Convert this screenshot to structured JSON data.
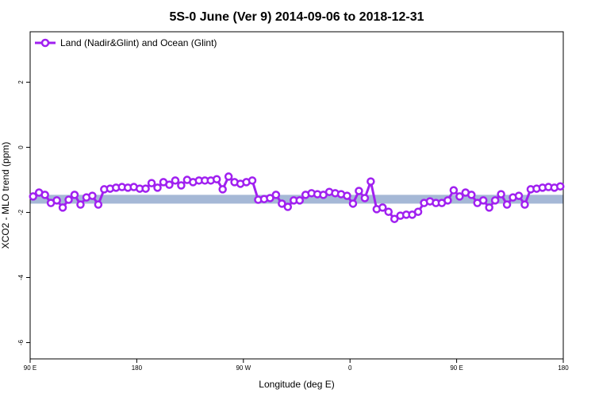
{
  "chart_data": {
    "type": "line",
    "title": "5S-0 June (Ver 9)   2014-09-06 to 2018-12-31",
    "x_label": "Longitude (deg E)",
    "y_label": "XCO2 - MLO trend (ppm)",
    "xlim": [
      90,
      540
    ],
    "ylim": [
      -6.5,
      3.55
    ],
    "xticks": [
      {
        "value": 90,
        "label": "90 E"
      },
      180,
      {
        "value": 270,
        "label": "90 W"
      },
      {
        "value": 360,
        "label": "0"
      },
      {
        "value": 450,
        "label": "90 E"
      },
      {
        "value": 540,
        "label": "180"
      }
    ],
    "yticks": [
      -6,
      -4,
      -2,
      0,
      2
    ],
    "reference_band": [
      -1.73,
      -1.46
    ],
    "band_color": "#a5b8d6",
    "legend_position": "top-left",
    "x": [
      92.5,
      97.5,
      102.5,
      107.5,
      112.5,
      117.5,
      122.5,
      127.5,
      132.5,
      137.5,
      142.5,
      147.5,
      152.5,
      157.5,
      162.5,
      167.5,
      172.5,
      177.5,
      182.5,
      187.5,
      192.5,
      197.5,
      202.5,
      207.5,
      212.5,
      217.5,
      222.5,
      227.5,
      232.5,
      237.5,
      242.5,
      247.5,
      252.5,
      257.5,
      262.5,
      267.5,
      272.5,
      277.5,
      282.5,
      287.5,
      292.5,
      297.5,
      302.5,
      307.5,
      312.5,
      317.5,
      322.5,
      327.5,
      332.5,
      337.5,
      342.5,
      347.5,
      352.5,
      357.5,
      362.5,
      367.5,
      372.5,
      377.5,
      382.5,
      387.5,
      392.5,
      397.5,
      402.5,
      407.5,
      412.5,
      417.5,
      422.5,
      427.5,
      432.5,
      437.5,
      442.5,
      447.5,
      452.5,
      457.5,
      462.5,
      467.5,
      472.5,
      477.5,
      482.5,
      487.5,
      492.5,
      497.5,
      502.5,
      507.5,
      512.5,
      517.5,
      522.5,
      527.5,
      532.5,
      537.5
    ],
    "series": [
      {
        "name": "Land (Nadir&Glint) and Ocean (Glint)",
        "color": "#a020f0",
        "values": [
          -1.51,
          -1.39,
          -1.46,
          -1.71,
          -1.63,
          -1.85,
          -1.61,
          -1.46,
          -1.76,
          -1.54,
          -1.49,
          -1.76,
          -1.29,
          -1.27,
          -1.24,
          -1.22,
          -1.24,
          -1.22,
          -1.27,
          -1.27,
          -1.1,
          -1.24,
          -1.07,
          -1.15,
          -1.02,
          -1.17,
          -1.0,
          -1.07,
          -1.02,
          -1.02,
          -1.02,
          -0.98,
          -1.29,
          -0.9,
          -1.07,
          -1.12,
          -1.07,
          -1.02,
          -1.61,
          -1.59,
          -1.56,
          -1.46,
          -1.73,
          -1.83,
          -1.63,
          -1.63,
          -1.46,
          -1.41,
          -1.44,
          -1.46,
          -1.37,
          -1.41,
          -1.44,
          -1.49,
          -1.73,
          -1.34,
          -1.56,
          -1.05,
          -1.9,
          -1.85,
          -1.98,
          -2.2,
          -2.1,
          -2.07,
          -2.07,
          -1.98,
          -1.71,
          -1.66,
          -1.71,
          -1.71,
          -1.63,
          -1.32,
          -1.51,
          -1.39,
          -1.46,
          -1.71,
          -1.63,
          -1.85,
          -1.63,
          -1.44,
          -1.76,
          -1.54,
          -1.49,
          -1.76,
          -1.29,
          -1.27,
          -1.24,
          -1.22,
          -1.24,
          -1.2
        ]
      }
    ]
  }
}
